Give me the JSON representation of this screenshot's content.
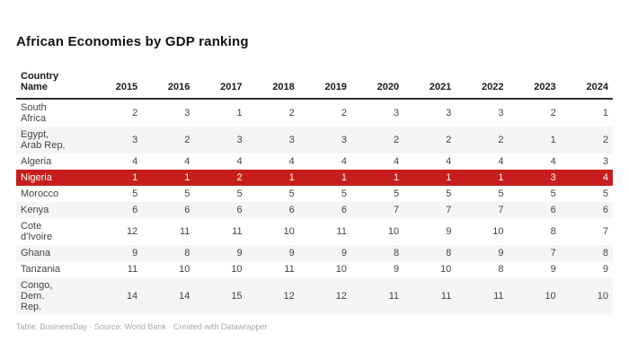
{
  "title": "African Economies by GDP ranking",
  "footer": {
    "text": "Table: BusinessDay · Source: World Bank · Created with Datawrapper"
  },
  "colors": {
    "highlight_row_background": "#c71e1d",
    "highlight_row_text": "#ffffff",
    "stripe_row_background": "#f5f5f5",
    "header_rule": "#2e2e2e"
  },
  "chart_data": {
    "type": "table",
    "title": "African Economies by GDP ranking",
    "header": {
      "country_label": "Country\nName",
      "years": [
        "2015",
        "2016",
        "2017",
        "2018",
        "2019",
        "2020",
        "2021",
        "2022",
        "2023",
        "2024"
      ]
    },
    "rows": [
      {
        "name": "South\nAfrica",
        "values": [
          2,
          3,
          1,
          2,
          2,
          3,
          3,
          3,
          2,
          1
        ],
        "highlight": false
      },
      {
        "name": "Egypt,\nArab Rep.",
        "values": [
          3,
          2,
          3,
          3,
          3,
          2,
          2,
          2,
          1,
          2
        ],
        "highlight": false
      },
      {
        "name": "Algeria",
        "values": [
          4,
          4,
          4,
          4,
          4,
          4,
          4,
          4,
          4,
          3
        ],
        "highlight": false
      },
      {
        "name": "Nigeria",
        "values": [
          1,
          1,
          2,
          1,
          1,
          1,
          1,
          1,
          3,
          4
        ],
        "highlight": true
      },
      {
        "name": "Morocco",
        "values": [
          5,
          5,
          5,
          5,
          5,
          5,
          5,
          5,
          5,
          5
        ],
        "highlight": false
      },
      {
        "name": "Kenya",
        "values": [
          6,
          6,
          6,
          6,
          6,
          7,
          7,
          7,
          6,
          6
        ],
        "highlight": false
      },
      {
        "name": "Cote\nd'Ivoire",
        "values": [
          12,
          11,
          11,
          10,
          11,
          10,
          9,
          10,
          8,
          7
        ],
        "highlight": false
      },
      {
        "name": "Ghana",
        "values": [
          9,
          8,
          9,
          9,
          9,
          8,
          8,
          9,
          7,
          8
        ],
        "highlight": false
      },
      {
        "name": "Tanzania",
        "values": [
          11,
          10,
          10,
          11,
          10,
          9,
          10,
          8,
          9,
          9
        ],
        "highlight": false
      },
      {
        "name": "Congo,\nDem.\nRep.",
        "values": [
          14,
          14,
          15,
          12,
          12,
          11,
          11,
          11,
          10,
          10
        ],
        "highlight": false
      }
    ]
  }
}
